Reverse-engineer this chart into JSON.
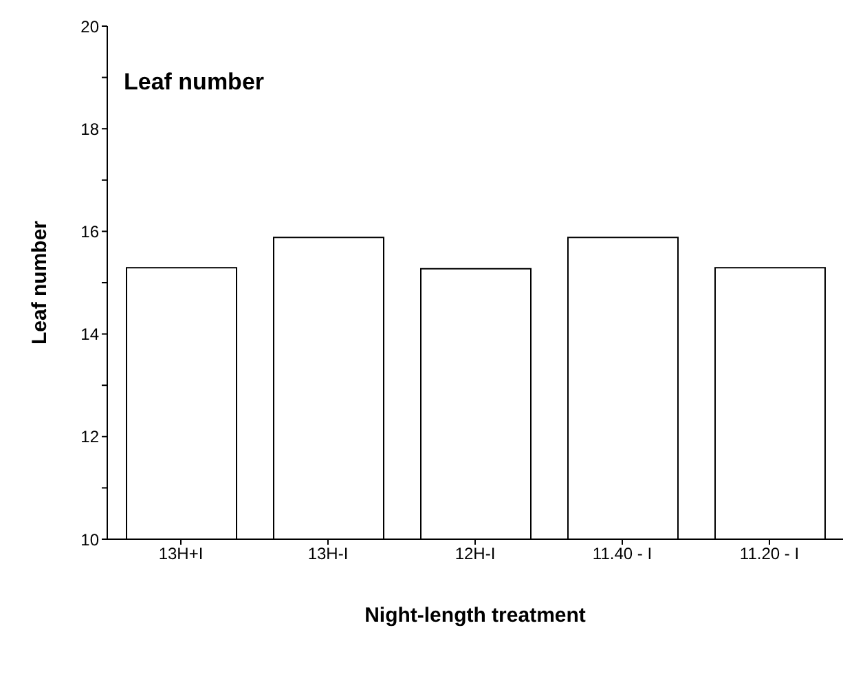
{
  "chart_data": {
    "type": "bar",
    "title": "Leaf number",
    "xlabel": "Night-length treatment",
    "ylabel": "Leaf number",
    "categories": [
      "13H+I",
      "13H-I",
      "12H-I",
      "11.40 - I",
      "11.20 - I"
    ],
    "values": [
      15.29,
      15.88,
      15.27,
      15.88,
      15.29
    ],
    "colors": [
      "#ffffff",
      "#ffffff",
      "#ffffff",
      "#ffffff",
      "#ffffff"
    ],
    "ylim": [
      10,
      20
    ],
    "yticks": [
      10,
      {
        "value": 11,
        "label": null
      },
      12,
      {
        "value": 13,
        "label": null
      },
      14,
      {
        "value": 15,
        "label": null
      },
      16,
      {
        "value": 17,
        "label": null
      },
      18,
      {
        "value": 19,
        "label": null
      },
      20
    ],
    "grid": false,
    "legend": false
  }
}
